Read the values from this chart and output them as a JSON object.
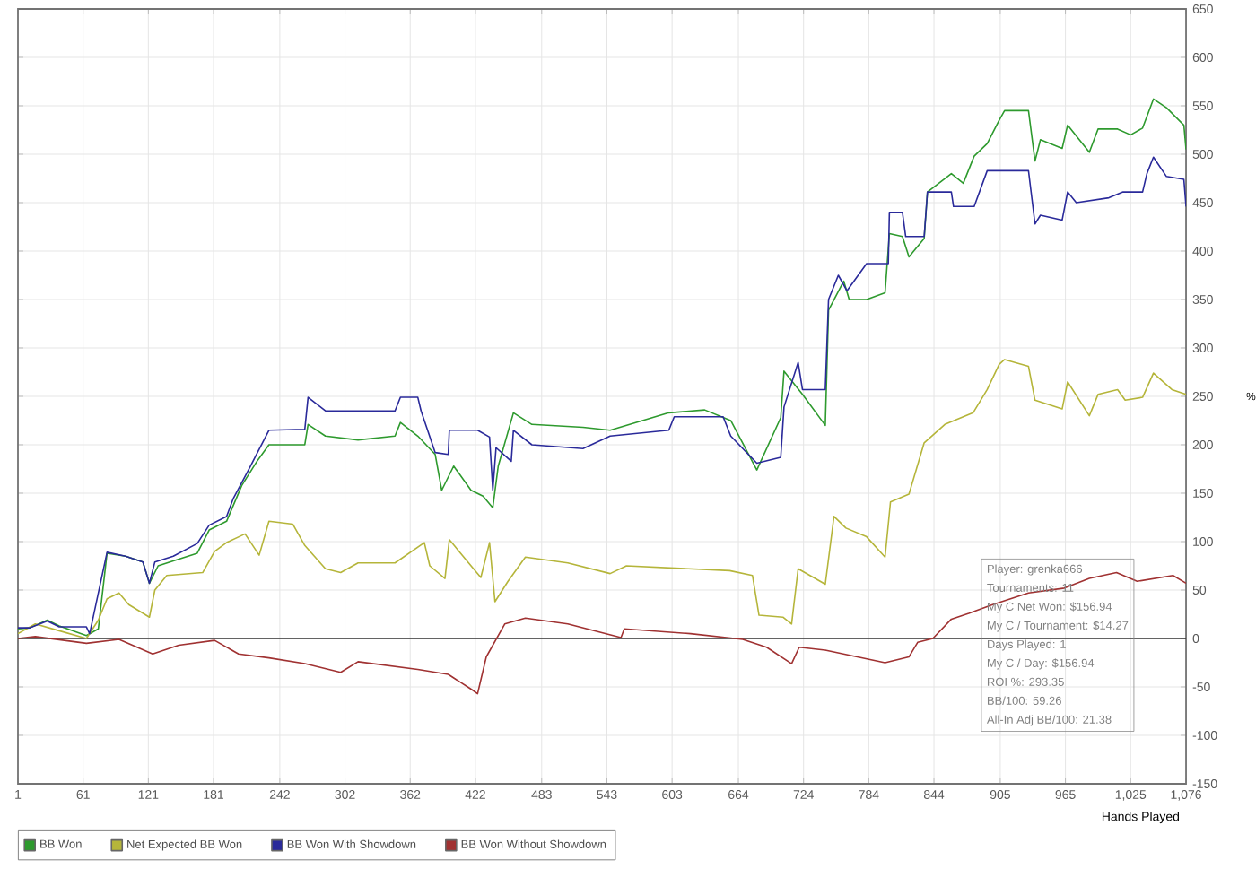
{
  "chart_data": {
    "type": "line",
    "xlabel": "Hands Played",
    "ylabel": "%",
    "xlim": [
      1,
      1076
    ],
    "ylim": [
      -150,
      650
    ],
    "xticks": [
      1,
      61,
      121,
      181,
      242,
      302,
      362,
      422,
      483,
      543,
      603,
      664,
      724,
      784,
      844,
      905,
      965,
      {
        "value": 1025,
        "label": "1,025"
      },
      {
        "value": 1076,
        "label": "1,076"
      }
    ],
    "yticks": [
      -150,
      -100,
      -50,
      0,
      50,
      100,
      150,
      200,
      250,
      300,
      350,
      400,
      450,
      500,
      550,
      600,
      650
    ],
    "grid": true,
    "legend": "bottom",
    "line_style": "solid",
    "ref_lines": [
      {
        "axis": "y",
        "value": 0,
        "color": "#333333"
      }
    ],
    "annotations": [
      "Player: grenka666",
      "Tournaments: 11",
      "My C Net Won: $156.94",
      "My C / Tournament: $14.27",
      "Days Played: 1",
      "My C / Day: $156.94",
      "ROI %: 293.35",
      "BB/100: 59.26",
      "All-In Adj BB/100: 21.38"
    ],
    "series": [
      {
        "name": "BB Won",
        "color": "#2e9a2e",
        "x": [
          1,
          12,
          28,
          39,
          64,
          75,
          83,
          100,
          116,
          122,
          130,
          144,
          166,
          177,
          193,
          207,
          221,
          232,
          265,
          268,
          284,
          314,
          348,
          353,
          369,
          385,
          391,
          402,
          418,
          429,
          438,
          443,
          457,
          474,
          521,
          546,
          600,
          633,
          657,
          681,
          703,
          706,
          723,
          744,
          747,
          761,
          766,
          782,
          799,
          803,
          815,
          821,
          835,
          838,
          860,
          871,
          881,
          893,
          904,
          909,
          931,
          937,
          942,
          962,
          967,
          987,
          995,
          1013,
          1025,
          1036,
          1046,
          1058,
          1074,
          1076
        ],
        "values": [
          10,
          11,
          19,
          13,
          3,
          10,
          88,
          85,
          79,
          57,
          75,
          80,
          88,
          112,
          121,
          158,
          183,
          200,
          200,
          221,
          209,
          205,
          209,
          223,
          209,
          190,
          153,
          178,
          153,
          147,
          135,
          178,
          233,
          221,
          218,
          215,
          233,
          236,
          225,
          174,
          228,
          276,
          252,
          220,
          339,
          369,
          350,
          350,
          357,
          418,
          415,
          394,
          413,
          461,
          480,
          470,
          498,
          511,
          535,
          545,
          545,
          493,
          515,
          506,
          530,
          502,
          526,
          526,
          520,
          527,
          557,
          548,
          530,
          505
        ]
      },
      {
        "name": "Net Expected BB Won",
        "color": "#b5b53a",
        "x": [
          1,
          17,
          39,
          64,
          75,
          83,
          94,
          103,
          122,
          127,
          138,
          171,
          182,
          193,
          210,
          223,
          232,
          254,
          265,
          284,
          298,
          314,
          348,
          375,
          380,
          394,
          398,
          418,
          427,
          435,
          440,
          452,
          468,
          507,
          546,
          561,
          656,
          677,
          683,
          705,
          713,
          719,
          744,
          752,
          763,
          782,
          799,
          804,
          821,
          835,
          854,
          880,
          893,
          904,
          909,
          931,
          937,
          962,
          967,
          987,
          995,
          1013,
          1020,
          1036,
          1046,
          1063,
          1076
        ],
        "values": [
          5,
          15,
          8,
          0,
          19,
          41,
          47,
          35,
          22,
          50,
          65,
          68,
          90,
          99,
          108,
          86,
          121,
          118,
          96,
          72,
          68,
          78,
          78,
          99,
          75,
          62,
          102,
          75,
          63,
          99,
          38,
          59,
          84,
          78,
          67,
          75,
          70,
          65,
          24,
          22,
          15,
          72,
          56,
          126,
          114,
          105,
          84,
          141,
          149,
          202,
          221,
          233,
          257,
          283,
          288,
          281,
          246,
          237,
          265,
          230,
          252,
          257,
          246,
          249,
          274,
          257,
          252
        ]
      },
      {
        "name": "BB Won With Showdown",
        "color": "#2a2a9a",
        "x": [
          1,
          12,
          28,
          39,
          64,
          67,
          83,
          100,
          116,
          122,
          127,
          144,
          166,
          177,
          193,
          199,
          215,
          232,
          265,
          268,
          284,
          348,
          353,
          369,
          372,
          385,
          397,
          398,
          424,
          435,
          438,
          441,
          455,
          457,
          474,
          521,
          546,
          600,
          605,
          650,
          657,
          681,
          703,
          706,
          719,
          723,
          744,
          747,
          756,
          764,
          782,
          802,
          803,
          815,
          818,
          835,
          838,
          860,
          862,
          881,
          893,
          931,
          937,
          942,
          962,
          967,
          975,
          1005,
          1018,
          1036,
          1040,
          1046,
          1058,
          1074,
          1076
        ],
        "values": [
          11,
          11,
          18,
          12,
          12,
          5,
          89,
          85,
          79,
          57,
          79,
          85,
          98,
          117,
          126,
          144,
          178,
          215,
          216,
          249,
          235,
          235,
          249,
          249,
          235,
          192,
          190,
          215,
          215,
          208,
          153,
          197,
          183,
          215,
          200,
          196,
          209,
          215,
          229,
          229,
          209,
          181,
          187,
          239,
          285,
          257,
          257,
          350,
          375,
          359,
          387,
          387,
          440,
          440,
          415,
          415,
          461,
          461,
          446,
          446,
          483,
          483,
          428,
          437,
          432,
          461,
          450,
          455,
          461,
          461,
          480,
          497,
          477,
          474,
          446
        ]
      },
      {
        "name": "BB Won Without Showdown",
        "color": "#a03232",
        "x": [
          1,
          17,
          64,
          94,
          125,
          149,
          182,
          204,
          232,
          265,
          298,
          314,
          369,
          397,
          419,
          424,
          432,
          449,
          468,
          507,
          556,
          559,
          620,
          668,
          690,
          713,
          720,
          744,
          799,
          821,
          829,
          843,
          860,
          876,
          898,
          931,
          964,
          987,
          1012,
          1031,
          1064,
          1076
        ],
        "values": [
          0,
          2,
          -5,
          -1,
          -16,
          -7,
          -2,
          -16,
          -20,
          -26,
          -35,
          -24,
          -32,
          -37,
          -53,
          -57,
          -19,
          15,
          21,
          15,
          1,
          10,
          5,
          -1,
          -9,
          -26,
          -9,
          -12,
          -25,
          -19,
          -4,
          0,
          20,
          26,
          35,
          47,
          52,
          62,
          68,
          59,
          65,
          57
        ]
      }
    ]
  }
}
